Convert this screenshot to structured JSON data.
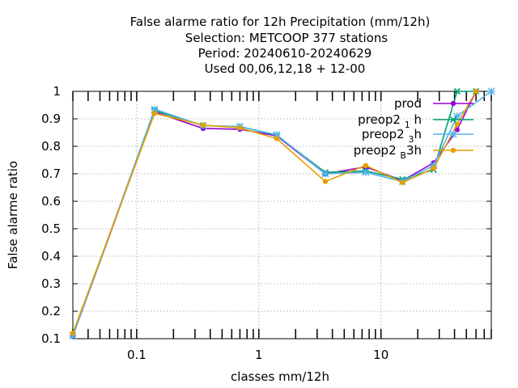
{
  "chart_data": {
    "type": "line",
    "title_lines": [
      "False alarme ratio  for 12h Precipitation (mm/12h)",
      "Selection: METCOOP    377 stations",
      "Period: 20240610-20240629",
      "Used  00,06,12,18 + 12-00"
    ],
    "xlabel": "classes mm/12h",
    "ylabel": "False alarme ratio",
    "xscale": "log",
    "xlim": [
      0.03,
      80
    ],
    "ylim": [
      0.1,
      1.0
    ],
    "x_ticks": [
      0.1,
      1,
      10
    ],
    "x_tick_labels": [
      "0.1",
      "1",
      "10"
    ],
    "y_ticks": [
      0.1,
      0.2,
      0.3,
      0.4,
      0.5,
      0.6,
      0.7,
      0.8,
      0.9,
      1.0
    ],
    "y_tick_labels": [
      "0.1",
      "0.2",
      "0.3",
      "0.4",
      "0.5",
      "0.6",
      "0.7",
      "0.8",
      "0.9",
      "1"
    ],
    "grid": true,
    "legend_position": "top-right",
    "series": [
      {
        "name": "prod",
        "legend_parts": [
          {
            "t": "prod"
          }
        ],
        "color": "#9400d3",
        "marker": "circle",
        "x": [
          0.03,
          0.14,
          0.35,
          0.7,
          1.4,
          3.5,
          7.5,
          15,
          27,
          42,
          60
        ],
        "y": [
          0.11,
          0.925,
          0.865,
          0.862,
          0.838,
          0.7,
          0.725,
          0.675,
          0.74,
          0.86,
          1.0
        ]
      },
      {
        "name": "preop2 1 h",
        "legend_parts": [
          {
            "t": "preop2 "
          },
          {
            "t": "1",
            "sub": true
          },
          {
            "t": " h"
          }
        ],
        "color": "#009e73",
        "marker": "x",
        "x": [
          0.03,
          0.14,
          0.35,
          0.7,
          1.4,
          3.5,
          7.5,
          15,
          27,
          42,
          60
        ],
        "y": [
          0.11,
          0.93,
          0.875,
          0.872,
          0.84,
          0.705,
          0.71,
          0.68,
          0.715,
          1.0,
          1.0
        ]
      },
      {
        "name": "preop2 3 h",
        "legend_parts": [
          {
            "t": "preop2 "
          },
          {
            "t": "3",
            "sub": true
          },
          {
            "t": "h"
          }
        ],
        "color": "#56b4e9",
        "marker": "star",
        "x": [
          0.03,
          0.14,
          0.35,
          0.7,
          1.4,
          3.5,
          7.5,
          15,
          27,
          42,
          80
        ],
        "y": [
          0.11,
          0.935,
          0.875,
          0.872,
          0.842,
          0.7,
          0.705,
          0.672,
          0.73,
          0.91,
          1.0
        ]
      },
      {
        "name": "preop2 B 3h",
        "legend_parts": [
          {
            "t": "preop2 "
          },
          {
            "t": "B",
            "sub": true
          },
          {
            "t": "3h"
          }
        ],
        "color": "#e69f00",
        "marker": "circle",
        "x": [
          0.03,
          0.14,
          0.35,
          0.7,
          1.4,
          3.5,
          7.5,
          15,
          27,
          42,
          60
        ],
        "y": [
          0.12,
          0.92,
          0.877,
          0.867,
          0.828,
          0.672,
          0.73,
          0.668,
          0.72,
          0.88,
          1.0
        ]
      }
    ]
  }
}
